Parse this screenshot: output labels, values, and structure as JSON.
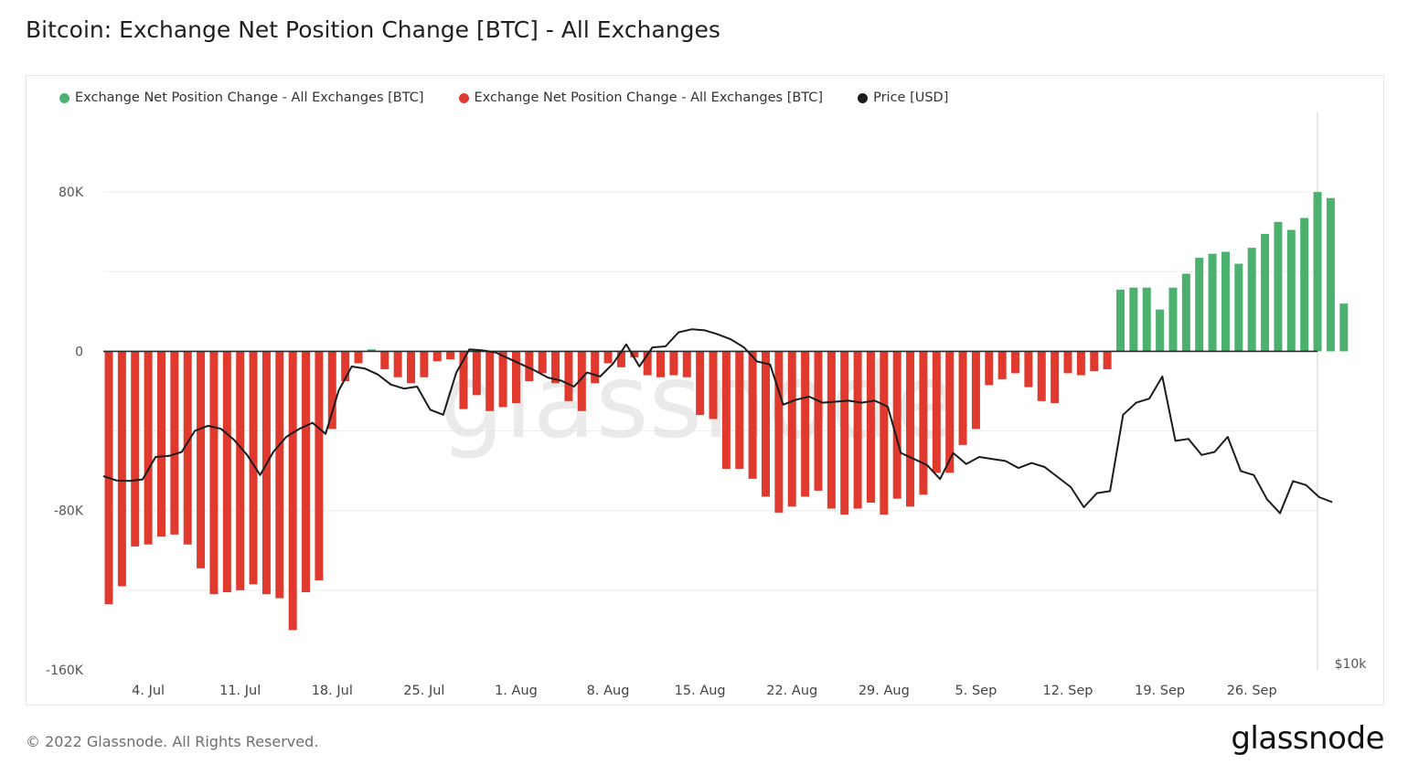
{
  "title": "Bitcoin: Exchange Net Position Change [BTC] - All Exchanges",
  "footer": {
    "copyright": "© 2022 Glassnode. All Rights Reserved.",
    "brand": "glassnode"
  },
  "colors": {
    "positive": "#4cb16f",
    "negative": "#e03a2f",
    "price": "#1c1c1c",
    "grid": "#ececec",
    "watermark": "#e4e4e4"
  },
  "chart_data": {
    "type": "bar",
    "legend": [
      {
        "name": "Exchange Net Position Change - All Exchanges [BTC]",
        "color": "#4cb16f"
      },
      {
        "name": "Exchange Net Position Change - All Exchanges [BTC]",
        "color": "#e03a2f"
      },
      {
        "name": "Price [USD]",
        "color": "#1c1c1c"
      }
    ],
    "legend_position": "top-left",
    "watermark": "glassnode",
    "x_ticks": [
      "4. Jul",
      "11. Jul",
      "18. Jul",
      "25. Jul",
      "1. Aug",
      "8. Aug",
      "15. Aug",
      "22. Aug",
      "29. Aug",
      "5. Sep",
      "12. Sep",
      "19. Sep",
      "26. Sep"
    ],
    "y_ticks": [
      "80K",
      "0",
      "-80K",
      "-160K"
    ],
    "y_right_label": "$10k",
    "ylim": [
      -160000,
      120000
    ],
    "start_date": "2022-07-01",
    "grid": true,
    "net_position_change": [
      -127000,
      -118000,
      -98000,
      -97000,
      -93000,
      -92000,
      -97000,
      -109000,
      -122000,
      -121000,
      -120000,
      -117000,
      -122000,
      -124000,
      -140000,
      -121000,
      -115000,
      -39000,
      -15000,
      -6000,
      1000,
      -9000,
      -13000,
      -16000,
      -13000,
      -5000,
      -4000,
      -29000,
      -22000,
      -30000,
      -28000,
      -26000,
      -15000,
      -11000,
      -16000,
      -25000,
      -30000,
      -16000,
      -6000,
      -8000,
      -3000,
      -12000,
      -13000,
      -12000,
      -13000,
      -32000,
      -34000,
      -59000,
      -59000,
      -64000,
      -73000,
      -81000,
      -78000,
      -73000,
      -70000,
      -79000,
      -82000,
      -79000,
      -76000,
      -82000,
      -74000,
      -78000,
      -72000,
      -61000,
      -61000,
      -47000,
      -39000,
      -17000,
      -14000,
      -11000,
      -18000,
      -25000,
      -26000,
      -11000,
      -12000,
      -10000,
      -9000,
      31000,
      32000,
      32000,
      21000,
      32000,
      39000,
      47000,
      49000,
      50000,
      44000,
      52000,
      59000,
      65000,
      61000,
      67000,
      80000,
      77000,
      24000
    ],
    "price_usd": [
      20550,
      20330,
      20310,
      20380,
      21500,
      21550,
      21750,
      22800,
      23050,
      22900,
      22350,
      21600,
      20600,
      21750,
      22500,
      22900,
      23200,
      22650,
      24800,
      26000,
      25900,
      25600,
      25100,
      24900,
      25000,
      23850,
      23600,
      25700,
      26850,
      26800,
      26700,
      26400,
      26100,
      25800,
      25450,
      25300,
      25000,
      25700,
      25500,
      26150,
      27100,
      26000,
      26950,
      27000,
      27700,
      27850,
      27800,
      27600,
      27350,
      26950,
      26250,
      26100,
      24100,
      24350,
      24500,
      24200,
      24250,
      24300,
      24200,
      24300,
      24000,
      21700,
      21400,
      21100,
      20400,
      21700,
      21150,
      21500,
      21400,
      21300,
      20950,
      21200,
      21000,
      20500,
      20000,
      19000,
      19700,
      19800,
      23600,
      24200,
      24400,
      25500,
      22300,
      22400,
      21600,
      21750,
      22500,
      20800,
      20600,
      19400,
      18700,
      20300,
      20100,
      19500,
      19250
    ]
  }
}
